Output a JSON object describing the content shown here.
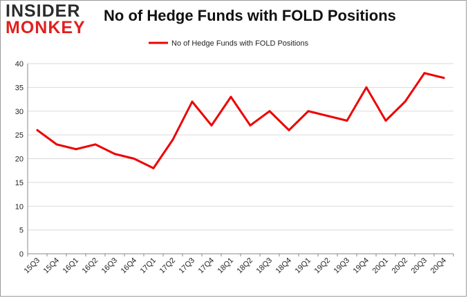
{
  "logo": {
    "line1": "INSIDER",
    "line2": "MONKEY"
  },
  "colors": {
    "series": "#ee0000",
    "grid": "#d9d9d9",
    "axis": "#888888"
  },
  "chart_data": {
    "type": "line",
    "title": "No of Hedge Funds with FOLD Positions",
    "xlabel": "",
    "ylabel": "",
    "ylim": [
      0,
      40
    ],
    "yticks": [
      0,
      5,
      10,
      15,
      20,
      25,
      30,
      35,
      40
    ],
    "grid": true,
    "legend_position": "top-center",
    "categories": [
      "15Q3",
      "15Q4",
      "16Q1",
      "16Q2",
      "16Q3",
      "16Q4",
      "17Q1",
      "17Q2",
      "17Q3",
      "17Q4",
      "18Q1",
      "18Q2",
      "18Q3",
      "18Q4",
      "19Q1",
      "19Q2",
      "19Q3",
      "19Q4",
      "20Q1",
      "20Q2",
      "20Q3",
      "20Q4"
    ],
    "series": [
      {
        "name": "No of Hedge Funds with FOLD Positions",
        "values": [
          26,
          23,
          22,
          23,
          21,
          20,
          18,
          24,
          32,
          27,
          33,
          27,
          30,
          26,
          30,
          29,
          28,
          35,
          28,
          32,
          38,
          37
        ]
      }
    ]
  }
}
